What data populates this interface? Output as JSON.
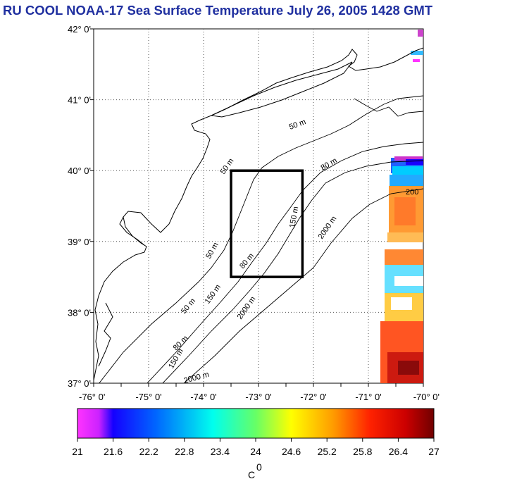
{
  "title": "RU COOL  NOAA-17 Sea Surface Temperature July 26, 2005 1428 GMT",
  "map": {
    "lon_range": [
      -76,
      -70
    ],
    "lat_range": [
      37,
      42
    ],
    "lon_ticks": [
      "-76° 0'",
      "-75° 0'",
      "-74° 0'",
      "-73° 0'",
      "-72° 0'",
      "-71° 0'",
      "-70° 0'"
    ],
    "lat_ticks": [
      "42° 0'",
      "41° 0'",
      "40° 0'",
      "39° 0'",
      "38° 0'",
      "37° 0'"
    ],
    "grid": "dotted",
    "contour_labels": [
      "50 m",
      "80 m",
      "150 m",
      "2000 m",
      "200"
    ],
    "study_box": {
      "lon": [
        -73.5,
        -72.2
      ],
      "lat": [
        38.5,
        40
      ]
    }
  },
  "colorbar": {
    "ticks": [
      "21",
      "21.6",
      "22.2",
      "22.8",
      "23.4",
      "24",
      "24.6",
      "25.2",
      "25.8",
      "26.4",
      "27"
    ],
    "unit": "C",
    "unit_sup": "0",
    "colors": [
      "#ff33ff",
      "#0000ff",
      "#00ffff",
      "#ffff00",
      "#ff0000",
      "#7a0000"
    ]
  }
}
